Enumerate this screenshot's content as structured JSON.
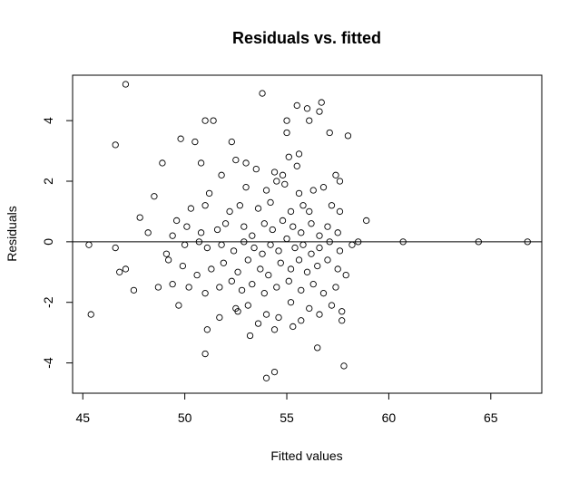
{
  "chart_data": {
    "type": "scatter",
    "title": "Residuals vs. fitted",
    "xlabel": "Fitted values",
    "ylabel": "Residuals",
    "xlim": [
      44.5,
      67.5
    ],
    "ylim": [
      -5.0,
      5.5
    ],
    "x_ticks": [
      45,
      50,
      55,
      60,
      65
    ],
    "x_tick_labels": [
      "45",
      "50",
      "55",
      "60",
      "65"
    ],
    "y_ticks": [
      -4,
      -2,
      0,
      2,
      4
    ],
    "y_tick_labels": [
      "-4",
      "-2",
      "0",
      "2",
      "4"
    ],
    "reference_line_y": 0,
    "marker": "open-circle",
    "colors": {
      "points": "#000000",
      "axes": "#000000",
      "background": "#ffffff"
    },
    "points": [
      [
        47.1,
        5.2
      ],
      [
        53.8,
        4.9
      ],
      [
        56.7,
        4.6
      ],
      [
        55.5,
        4.5
      ],
      [
        56.0,
        4.4
      ],
      [
        56.6,
        4.3
      ],
      [
        51.4,
        4.0
      ],
      [
        51.0,
        4.0
      ],
      [
        55.0,
        4.0
      ],
      [
        56.1,
        4.0
      ],
      [
        46.6,
        3.2
      ],
      [
        49.8,
        3.4
      ],
      [
        50.5,
        3.3
      ],
      [
        52.3,
        3.3
      ],
      [
        55.0,
        3.6
      ],
      [
        57.1,
        3.6
      ],
      [
        58.0,
        3.5
      ],
      [
        55.6,
        2.9
      ],
      [
        48.9,
        2.6
      ],
      [
        50.8,
        2.6
      ],
      [
        52.5,
        2.7
      ],
      [
        53.0,
        2.6
      ],
      [
        55.1,
        2.8
      ],
      [
        55.5,
        2.5
      ],
      [
        51.8,
        2.2
      ],
      [
        53.5,
        2.4
      ],
      [
        54.4,
        2.3
      ],
      [
        54.8,
        2.2
      ],
      [
        57.4,
        2.2
      ],
      [
        57.6,
        2.0
      ],
      [
        54.5,
        2.0
      ],
      [
        48.5,
        1.5
      ],
      [
        51.2,
        1.6
      ],
      [
        53.0,
        1.8
      ],
      [
        54.0,
        1.7
      ],
      [
        54.9,
        1.9
      ],
      [
        55.6,
        1.6
      ],
      [
        56.3,
        1.7
      ],
      [
        56.8,
        1.8
      ],
      [
        47.8,
        0.8
      ],
      [
        49.6,
        0.7
      ],
      [
        50.3,
        1.1
      ],
      [
        51.0,
        1.2
      ],
      [
        52.2,
        1.0
      ],
      [
        52.7,
        1.2
      ],
      [
        53.6,
        1.1
      ],
      [
        54.2,
        1.3
      ],
      [
        55.2,
        1.0
      ],
      [
        55.8,
        1.2
      ],
      [
        56.1,
        1.0
      ],
      [
        57.2,
        1.2
      ],
      [
        57.6,
        1.0
      ],
      [
        58.9,
        0.7
      ],
      [
        48.2,
        0.3
      ],
      [
        49.4,
        0.2
      ],
      [
        50.1,
        0.5
      ],
      [
        50.8,
        0.3
      ],
      [
        51.6,
        0.4
      ],
      [
        52.0,
        0.6
      ],
      [
        52.9,
        0.5
      ],
      [
        53.3,
        0.2
      ],
      [
        53.9,
        0.6
      ],
      [
        54.3,
        0.4
      ],
      [
        54.8,
        0.7
      ],
      [
        55.3,
        0.5
      ],
      [
        55.7,
        0.3
      ],
      [
        56.2,
        0.6
      ],
      [
        56.6,
        0.2
      ],
      [
        57.0,
        0.5
      ],
      [
        57.5,
        0.3
      ],
      [
        45.3,
        -0.1
      ],
      [
        46.6,
        -0.2
      ],
      [
        49.1,
        -0.4
      ],
      [
        50.0,
        -0.1
      ],
      [
        50.7,
        0.0
      ],
      [
        51.1,
        -0.2
      ],
      [
        51.8,
        -0.1
      ],
      [
        52.4,
        -0.3
      ],
      [
        52.9,
        0.0
      ],
      [
        53.4,
        -0.2
      ],
      [
        53.8,
        -0.4
      ],
      [
        54.2,
        -0.1
      ],
      [
        54.6,
        -0.3
      ],
      [
        55.0,
        0.1
      ],
      [
        55.4,
        -0.2
      ],
      [
        55.8,
        -0.1
      ],
      [
        56.2,
        -0.4
      ],
      [
        56.6,
        -0.2
      ],
      [
        57.1,
        0.0
      ],
      [
        57.6,
        -0.3
      ],
      [
        58.2,
        -0.1
      ],
      [
        58.5,
        0.0
      ],
      [
        60.7,
        0.0
      ],
      [
        64.4,
        0.0
      ],
      [
        66.8,
        0.0
      ],
      [
        46.8,
        -1.0
      ],
      [
        47.1,
        -0.9
      ],
      [
        49.2,
        -0.6
      ],
      [
        49.9,
        -0.8
      ],
      [
        50.6,
        -1.1
      ],
      [
        51.3,
        -0.9
      ],
      [
        51.9,
        -0.7
      ],
      [
        52.6,
        -1.0
      ],
      [
        53.1,
        -0.6
      ],
      [
        53.7,
        -0.9
      ],
      [
        54.1,
        -1.1
      ],
      [
        54.7,
        -0.7
      ],
      [
        55.2,
        -0.9
      ],
      [
        55.6,
        -0.6
      ],
      [
        56.0,
        -1.0
      ],
      [
        56.5,
        -0.8
      ],
      [
        57.0,
        -0.6
      ],
      [
        57.5,
        -0.9
      ],
      [
        57.9,
        -1.1
      ],
      [
        47.5,
        -1.6
      ],
      [
        48.7,
        -1.5
      ],
      [
        49.4,
        -1.4
      ],
      [
        50.2,
        -1.5
      ],
      [
        51.0,
        -1.7
      ],
      [
        51.7,
        -1.5
      ],
      [
        52.3,
        -1.3
      ],
      [
        52.8,
        -1.6
      ],
      [
        53.3,
        -1.4
      ],
      [
        53.9,
        -1.7
      ],
      [
        54.5,
        -1.5
      ],
      [
        55.1,
        -1.3
      ],
      [
        55.7,
        -1.6
      ],
      [
        56.3,
        -1.4
      ],
      [
        56.8,
        -1.7
      ],
      [
        57.4,
        -1.5
      ],
      [
        49.7,
        -2.1
      ],
      [
        51.7,
        -2.5
      ],
      [
        52.5,
        -2.2
      ],
      [
        53.1,
        -2.1
      ],
      [
        53.6,
        -2.7
      ],
      [
        54.0,
        -2.4
      ],
      [
        54.6,
        -2.5
      ],
      [
        55.2,
        -2.0
      ],
      [
        55.7,
        -2.6
      ],
      [
        56.1,
        -2.2
      ],
      [
        56.6,
        -2.4
      ],
      [
        57.2,
        -2.1
      ],
      [
        57.7,
        -2.3
      ],
      [
        45.4,
        -2.4
      ],
      [
        51.1,
        -2.9
      ],
      [
        53.2,
        -3.1
      ],
      [
        54.4,
        -2.9
      ],
      [
        56.5,
        -3.5
      ],
      [
        51.0,
        -3.7
      ],
      [
        54.0,
        -4.5
      ],
      [
        54.4,
        -4.3
      ],
      [
        57.8,
        -4.1
      ],
      [
        57.7,
        -2.6
      ],
      [
        55.3,
        -2.8
      ],
      [
        52.6,
        -2.3
      ]
    ]
  }
}
